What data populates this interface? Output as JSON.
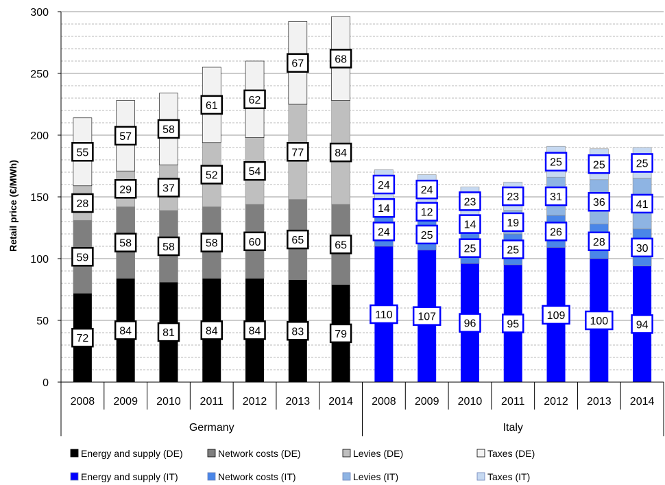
{
  "chart_data": {
    "type": "bar",
    "stacked": true,
    "ylabel": "Retail price (€/MWh)",
    "ylim": [
      0,
      300
    ],
    "yticks": [
      0,
      50,
      100,
      150,
      200,
      250,
      300
    ],
    "grid": true,
    "legend_position": "bottom",
    "groups": [
      {
        "name": "Germany",
        "categories": [
          "2008",
          "2009",
          "2010",
          "2011",
          "2012",
          "2013",
          "2014"
        ],
        "series": [
          {
            "name": "Energy and supply (DE)",
            "color": "#000000",
            "values": [
              72,
              84,
              81,
              84,
              84,
              83,
              79
            ]
          },
          {
            "name": "Network costs (DE)",
            "color": "#7f7f7f",
            "values": [
              59,
              58,
              58,
              58,
              60,
              65,
              65
            ]
          },
          {
            "name": "Levies (DE)",
            "color": "#bfbfbf",
            "values": [
              28,
              29,
              37,
              52,
              54,
              77,
              84
            ]
          },
          {
            "name": "Taxes (DE)",
            "color": "#f2f2f2",
            "values": [
              55,
              57,
              58,
              61,
              62,
              67,
              68
            ]
          }
        ]
      },
      {
        "name": "Italy",
        "categories": [
          "2008",
          "2009",
          "2010",
          "2011",
          "2012",
          "2013",
          "2014"
        ],
        "series": [
          {
            "name": "Energy and supply (IT)",
            "color": "#0000ff",
            "values": [
              110,
              107,
              96,
              95,
              109,
              100,
              94
            ]
          },
          {
            "name": "Network costs (IT)",
            "color": "#4a86e8",
            "values": [
              24,
              25,
              25,
              25,
              26,
              28,
              30
            ]
          },
          {
            "name": "Levies (IT)",
            "color": "#8eb4e3",
            "values": [
              14,
              12,
              14,
              19,
              31,
              36,
              41
            ]
          },
          {
            "name": "Taxes (IT)",
            "color": "#c6d9f1",
            "values": [
              24,
              24,
              23,
              23,
              25,
              25,
              25
            ]
          }
        ]
      }
    ]
  }
}
